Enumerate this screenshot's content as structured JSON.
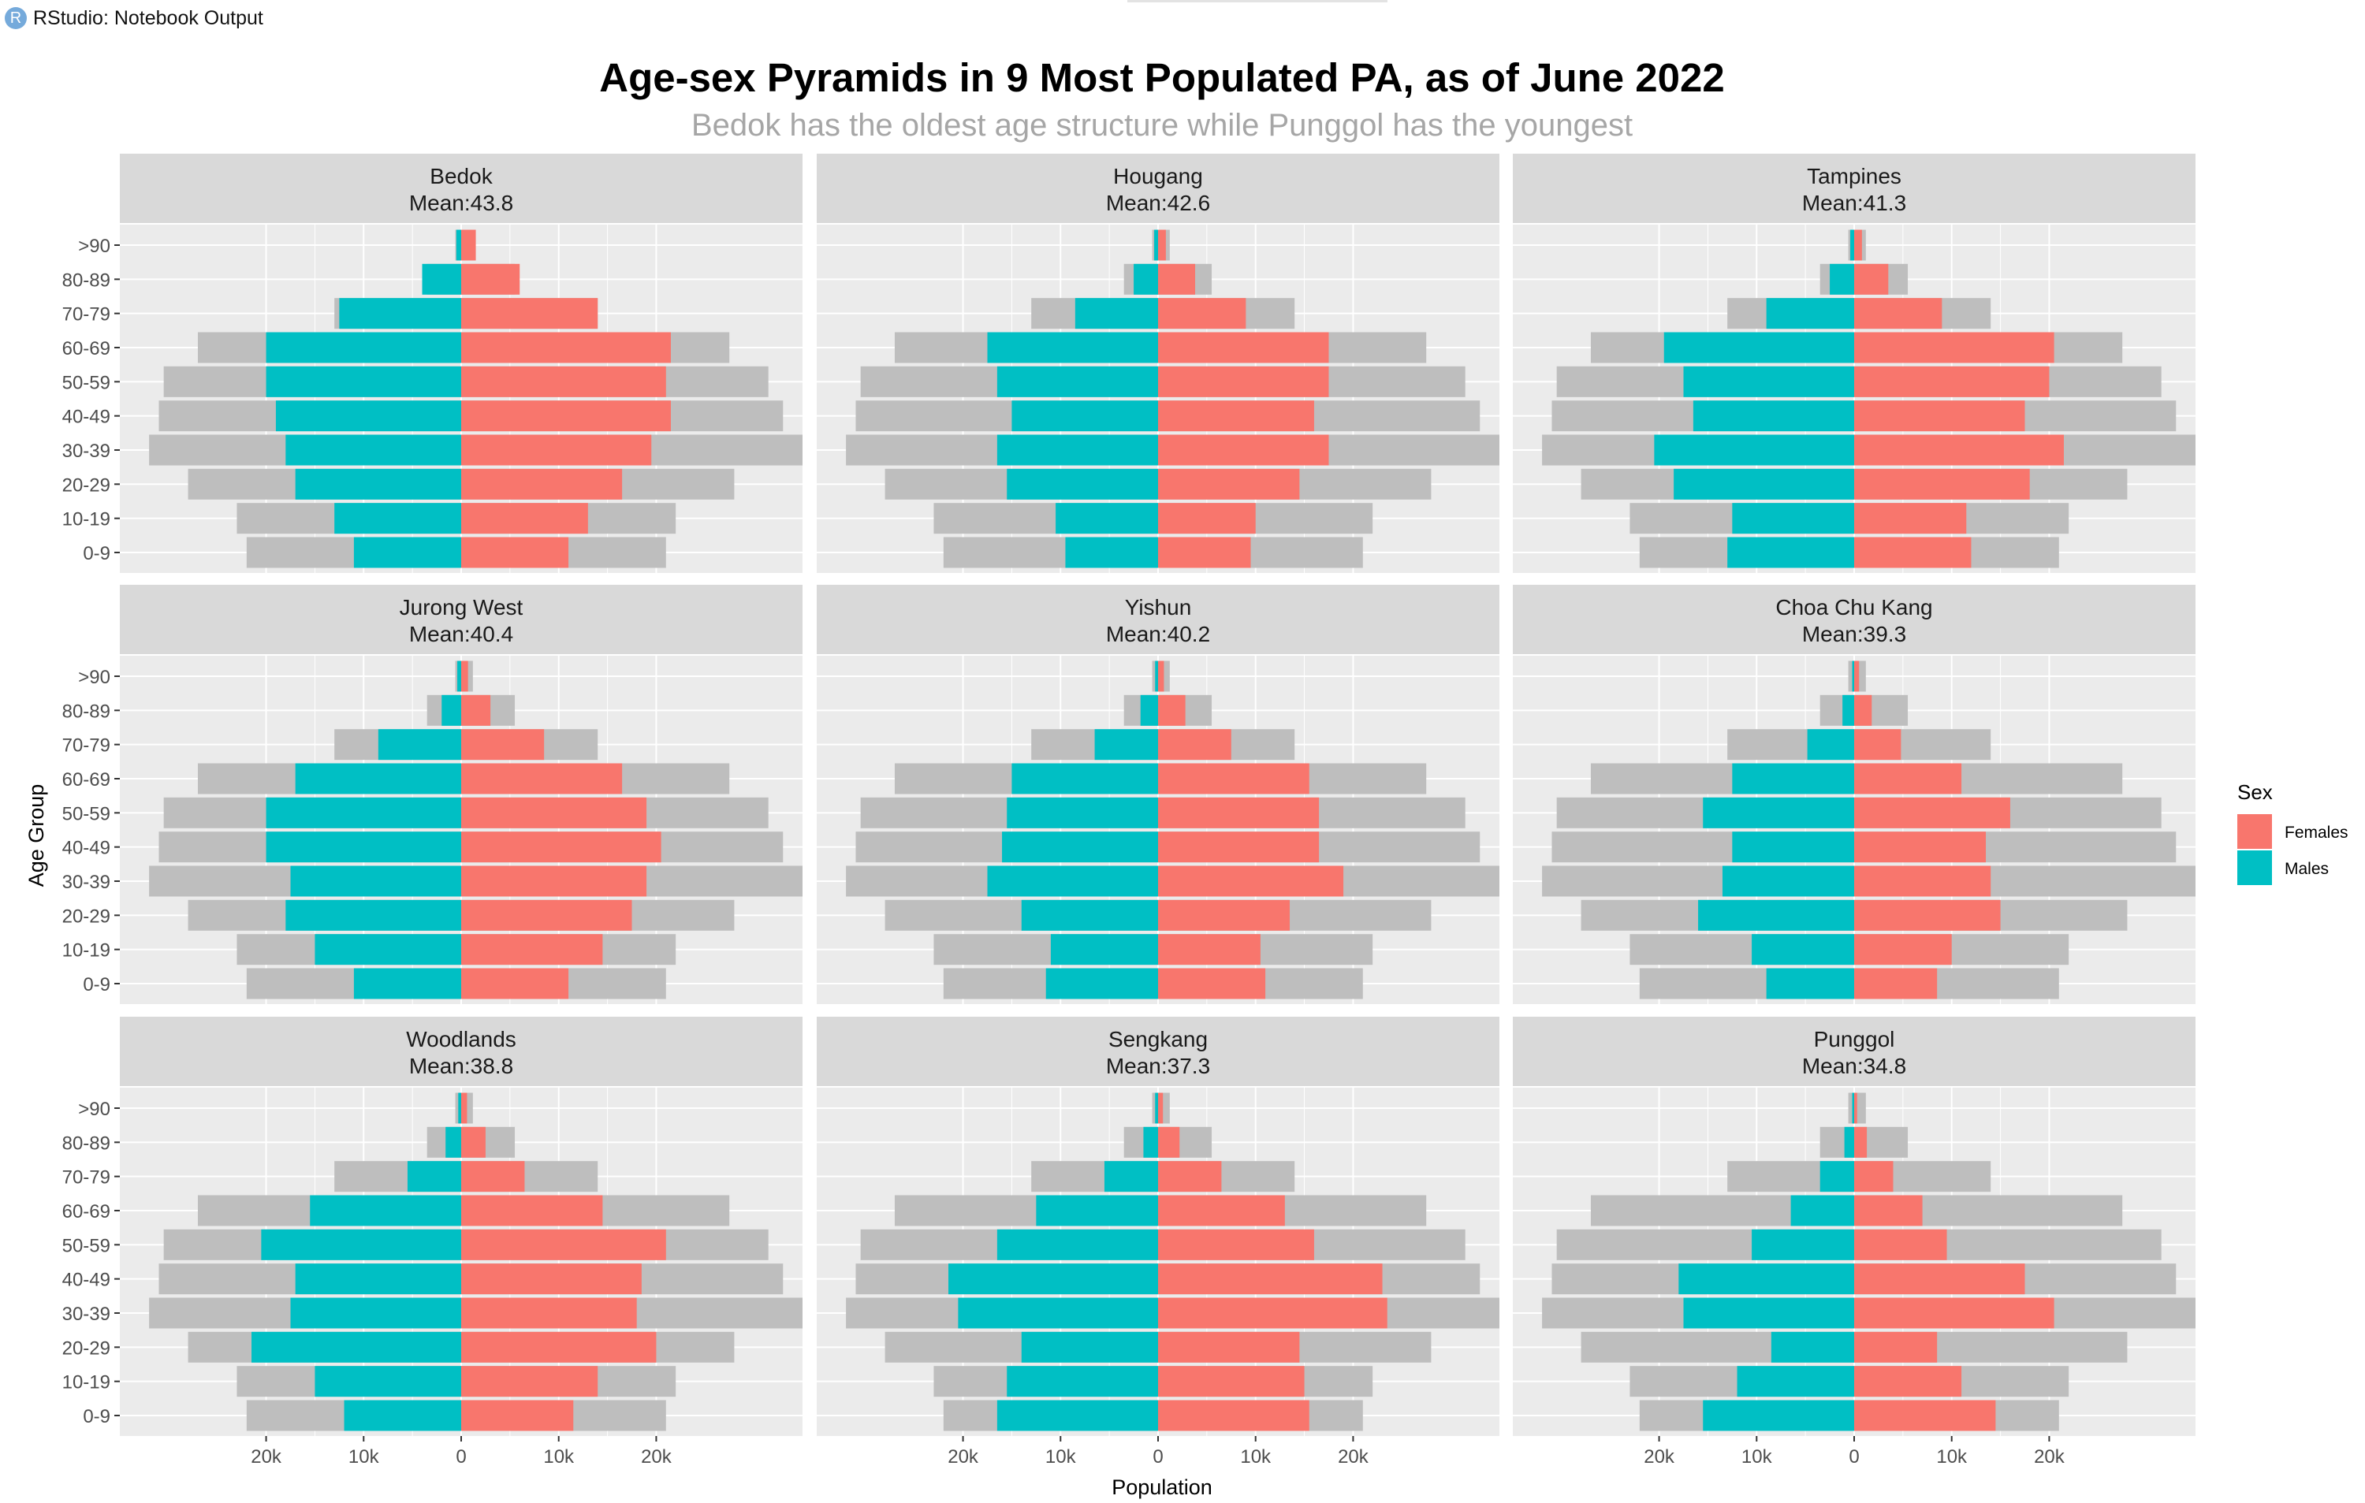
{
  "window": {
    "title": "RStudio: Notebook Output",
    "icon": "rstudio-logo-icon"
  },
  "colors": {
    "females": "#F8766D",
    "males": "#00BFC4",
    "total_outline": "#BEBEBE",
    "panel_background": "#EBEBEB",
    "strip_background": "#D9D9D9",
    "subtitle": "#A6A6A6"
  },
  "chart_data": {
    "type": "bar",
    "title": "Age-sex Pyramids in 9 Most Populated PA, as of June 2022",
    "subtitle": "Bedok has the oldest age structure while Punggol has the youngest",
    "xlabel": "Population",
    "ylabel": "Age Group",
    "xlim": [
      -35000,
      35000
    ],
    "x_tick_values": [
      -20000,
      -10000,
      0,
      10000,
      20000
    ],
    "x_tick_labels": [
      "20k",
      "10k",
      "0",
      "10k",
      "20k"
    ],
    "categories": [
      "0-9",
      "10-19",
      "20-29",
      "30-39",
      "40-49",
      "50-59",
      "60-69",
      "70-79",
      "80-89",
      ">90"
    ],
    "legend": {
      "title": "Sex",
      "position": "right",
      "entries": [
        {
          "name": "Females",
          "color": "#F8766D"
        },
        {
          "name": "Males",
          "color": "#00BFC4"
        }
      ]
    },
    "grid": true,
    "background_note": "grey bars show the largest planning area's population for each age group and sex",
    "background_series": {
      "males": [
        22000,
        23000,
        28000,
        32000,
        31000,
        30500,
        27000,
        13000,
        3500,
        600
      ],
      "females": [
        21000,
        22000,
        28000,
        35000,
        33000,
        31500,
        27500,
        14000,
        5500,
        1200
      ]
    },
    "panels": [
      {
        "name": "Bedok",
        "mean_label": "Mean:43.8",
        "males": [
          11000,
          13000,
          17000,
          18000,
          19000,
          20000,
          20000,
          12500,
          4000,
          500
        ],
        "females": [
          11000,
          13000,
          16500,
          19500,
          21500,
          21000,
          21500,
          14000,
          6000,
          1500
        ]
      },
      {
        "name": "Hougang",
        "mean_label": "Mean:42.6",
        "males": [
          9500,
          10500,
          15500,
          16500,
          15000,
          16500,
          17500,
          8500,
          2500,
          400
        ],
        "females": [
          9500,
          10000,
          14500,
          17500,
          16000,
          17500,
          17500,
          9000,
          3800,
          800
        ]
      },
      {
        "name": "Tampines",
        "mean_label": "Mean:41.3",
        "males": [
          13000,
          12500,
          18500,
          20500,
          16500,
          17500,
          19500,
          9000,
          2500,
          400
        ],
        "females": [
          12000,
          11500,
          18000,
          21500,
          17500,
          20000,
          20500,
          9000,
          3500,
          800
        ]
      },
      {
        "name": "Jurong West",
        "mean_label": "Mean:40.4",
        "males": [
          11000,
          15000,
          18000,
          17500,
          20000,
          20000,
          17000,
          8500,
          2000,
          400
        ],
        "females": [
          11000,
          14500,
          17500,
          19000,
          20500,
          19000,
          16500,
          8500,
          3000,
          700
        ]
      },
      {
        "name": "Yishun",
        "mean_label": "Mean:40.2",
        "males": [
          11500,
          11000,
          14000,
          17500,
          16000,
          15500,
          15000,
          6500,
          1800,
          300
        ],
        "females": [
          11000,
          10500,
          13500,
          19000,
          16500,
          16500,
          15500,
          7500,
          2800,
          600
        ]
      },
      {
        "name": "Choa Chu Kang",
        "mean_label": "Mean:39.3",
        "males": [
          9000,
          10500,
          16000,
          13500,
          12500,
          15500,
          12500,
          4800,
          1200,
          200
        ],
        "females": [
          8500,
          10000,
          15000,
          14000,
          13500,
          16000,
          11000,
          4800,
          1800,
          500
        ]
      },
      {
        "name": "Woodlands",
        "mean_label": "Mean:38.8",
        "males": [
          12000,
          15000,
          21500,
          17500,
          17000,
          20500,
          15500,
          5500,
          1600,
          300
        ],
        "females": [
          11500,
          14000,
          20000,
          18000,
          18500,
          21000,
          14500,
          6500,
          2500,
          600
        ]
      },
      {
        "name": "Sengkang",
        "mean_label": "Mean:37.3",
        "males": [
          16500,
          15500,
          14000,
          20500,
          21500,
          16500,
          12500,
          5500,
          1500,
          300
        ],
        "females": [
          15500,
          15000,
          14500,
          23500,
          23000,
          16000,
          13000,
          6500,
          2200,
          500
        ]
      },
      {
        "name": "Punggol",
        "mean_label": "Mean:34.8",
        "males": [
          15500,
          12000,
          8500,
          17500,
          18000,
          10500,
          6500,
          3500,
          1000,
          200
        ],
        "females": [
          14500,
          11000,
          8500,
          20500,
          17500,
          9500,
          7000,
          4000,
          1300,
          300
        ]
      }
    ]
  }
}
